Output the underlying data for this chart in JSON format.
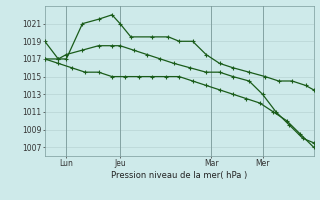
{
  "background_color": "#ceeaea",
  "grid_color": "#b8d4d4",
  "line_color": "#1a5c1a",
  "title": "Pression niveau de la mer( hPa )",
  "ylim": [
    1006,
    1023
  ],
  "yticks": [
    1007,
    1009,
    1011,
    1013,
    1015,
    1017,
    1019,
    1021
  ],
  "x_labels": [
    "Lun",
    "Jeu",
    "Mar",
    "Mer"
  ],
  "vline_positions": [
    0.08,
    0.28,
    0.62,
    0.81
  ],
  "series1_x": [
    0.0,
    0.05,
    0.08,
    0.14,
    0.2,
    0.25,
    0.28,
    0.32,
    0.4,
    0.46,
    0.5,
    0.55,
    0.6,
    0.65,
    0.7,
    0.76,
    0.82,
    0.87,
    0.92,
    0.97,
    1.0
  ],
  "series1_y": [
    1019,
    1017,
    1017,
    1021,
    1021.5,
    1022,
    1021,
    1019.5,
    1019.5,
    1019.5,
    1019,
    1019,
    1017.5,
    1016.5,
    1016,
    1015.5,
    1015,
    1014.5,
    1014.5,
    1014,
    1013.5
  ],
  "series2_x": [
    0.0,
    0.05,
    0.08,
    0.14,
    0.2,
    0.25,
    0.28,
    0.33,
    0.38,
    0.43,
    0.48,
    0.54,
    0.6,
    0.65,
    0.7,
    0.76,
    0.81,
    0.86,
    0.91,
    0.96,
    1.0
  ],
  "series2_y": [
    1017,
    1017,
    1017.5,
    1018,
    1018.5,
    1018.5,
    1018.5,
    1018,
    1017.5,
    1017,
    1016.5,
    1016,
    1015.5,
    1015.5,
    1015,
    1014.5,
    1013,
    1011,
    1009.5,
    1008,
    1007.5
  ],
  "series3_x": [
    0.0,
    0.05,
    0.1,
    0.15,
    0.2,
    0.25,
    0.3,
    0.35,
    0.4,
    0.45,
    0.5,
    0.55,
    0.6,
    0.65,
    0.7,
    0.75,
    0.8,
    0.85,
    0.9,
    0.95,
    1.0
  ],
  "series3_y": [
    1017,
    1016.5,
    1016,
    1015.5,
    1015.5,
    1015,
    1015,
    1015,
    1015,
    1015,
    1015,
    1014.5,
    1014,
    1013.5,
    1013,
    1012.5,
    1012,
    1011,
    1010,
    1008.5,
    1007
  ]
}
